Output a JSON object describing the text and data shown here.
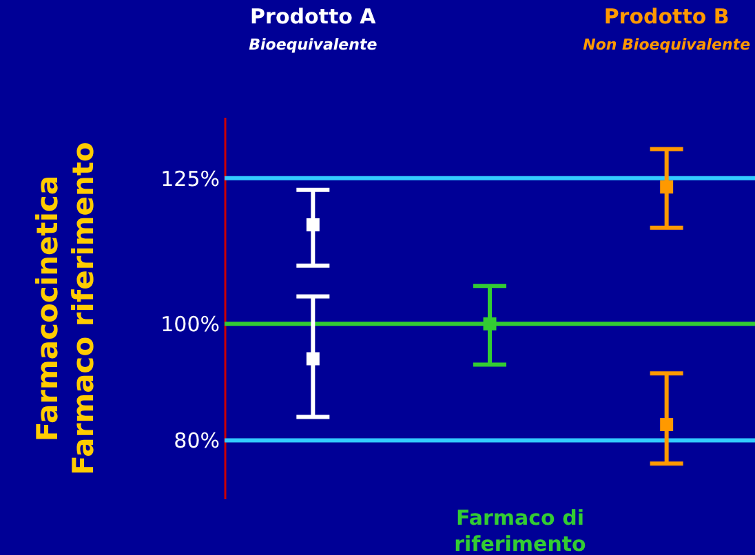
{
  "chart_data": {
    "type": "scatter",
    "ylabel": "Farmacocinetica\nFarmaco riferimento",
    "categories": [
      null,
      null,
      null
    ],
    "ylim": [
      70,
      135.5
    ],
    "yticks": [
      {
        "value": 80,
        "label": "80%"
      },
      {
        "value": 100,
        "label": "100%"
      },
      {
        "value": 125,
        "label": "125%"
      }
    ],
    "tick_labels": "y",
    "marker": "square",
    "series": [
      {
        "name": "Prodotto A",
        "color": "#ffffff",
        "values": [
          117,
          null,
          null
        ],
        "errors": [
          [
            110,
            123
          ],
          null,
          null
        ]
      },
      {
        "color": "#ffffff",
        "values": [
          94,
          null,
          null
        ],
        "errors": [
          [
            84,
            104.7
          ],
          null,
          null
        ]
      },
      {
        "name": "Farmaco di\nriferimento",
        "color": "#33cc33",
        "values": [
          null,
          100,
          null
        ],
        "errors": [
          null,
          [
            93,
            106.5
          ],
          null
        ]
      },
      {
        "name": "Prodotto B",
        "color": "#ff9900",
        "values": [
          null,
          null,
          123.5
        ],
        "errors": [
          null,
          null,
          [
            116.5,
            130
          ]
        ]
      },
      {
        "color": "#ff9900",
        "values": [
          null,
          null,
          82.7
        ],
        "errors": [
          null,
          null,
          [
            76,
            91.5
          ]
        ]
      }
    ],
    "annotations": [
      "Bioequivalente",
      "Non Bioequivalente"
    ],
    "ref_lines": [
      {
        "axis": "y",
        "value": 125,
        "color": "#33ccff"
      },
      {
        "axis": "y",
        "value": 100,
        "color": "#33cc33"
      },
      {
        "axis": "y",
        "value": 80,
        "color": "#33ccff"
      }
    ]
  }
}
